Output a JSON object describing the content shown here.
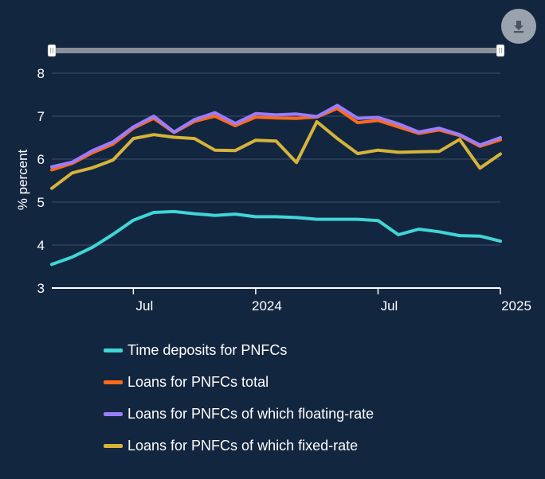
{
  "toolbar": {
    "download_icon": "download-icon"
  },
  "colors": {
    "background": "#132640",
    "grid": "#3d5068",
    "axis": "#ffffff",
    "slider_track": "#8a9099",
    "slider_handle": "#ffffff"
  },
  "chart_data": {
    "type": "line",
    "ylabel": "% percent",
    "ylim": [
      3,
      8
    ],
    "yticks": [
      3,
      4,
      5,
      6,
      7,
      8
    ],
    "xlim": [
      "2023-03",
      "2025-01"
    ],
    "xticks": [
      {
        "date": "2023-07",
        "label": "Jul"
      },
      {
        "date": "2024-01",
        "label": "2024"
      },
      {
        "date": "2024-07",
        "label": "Jul"
      },
      {
        "date": "2025-01",
        "label": "2025"
      }
    ],
    "x": [
      "2023-03",
      "2023-04",
      "2023-05",
      "2023-06",
      "2023-07",
      "2023-08",
      "2023-09",
      "2023-10",
      "2023-11",
      "2023-12",
      "2024-01",
      "2024-02",
      "2024-03",
      "2024-04",
      "2024-05",
      "2024-06",
      "2024-07",
      "2024-08",
      "2024-09",
      "2024-10",
      "2024-11",
      "2024-12",
      "2025-01"
    ],
    "grid": true,
    "legend_position": "bottom",
    "series": [
      {
        "name": "Time deposits for PNFCs",
        "color": "#3fd6d6",
        "values": [
          3.55,
          3.72,
          3.95,
          4.25,
          4.58,
          4.76,
          4.78,
          4.73,
          4.69,
          4.72,
          4.66,
          4.66,
          4.64,
          4.6,
          4.6,
          4.6,
          4.57,
          4.24,
          4.37,
          4.31,
          4.22,
          4.21,
          4.09
        ]
      },
      {
        "name": "Loans for PNFCs total",
        "color": "#ff6a1c",
        "values": [
          5.75,
          5.9,
          6.15,
          6.35,
          6.72,
          6.95,
          6.62,
          6.88,
          7.0,
          6.78,
          6.98,
          6.96,
          6.95,
          6.98,
          7.18,
          6.85,
          6.9,
          6.75,
          6.6,
          6.68,
          6.55,
          6.3,
          6.45
        ]
      },
      {
        "name": "Loans for PNFCs of which floating-rate",
        "color": "#9b7cff",
        "values": [
          5.82,
          5.93,
          6.2,
          6.4,
          6.75,
          7.0,
          6.63,
          6.92,
          7.08,
          6.83,
          7.06,
          7.03,
          7.05,
          6.99,
          7.25,
          6.95,
          6.97,
          6.82,
          6.63,
          6.72,
          6.57,
          6.33,
          6.5
        ]
      },
      {
        "name": "Loans for PNFCs of which fixed-rate",
        "color": "#d6b43a",
        "values": [
          5.32,
          5.68,
          5.8,
          5.98,
          6.48,
          6.57,
          6.51,
          6.48,
          6.21,
          6.2,
          6.44,
          6.42,
          5.92,
          6.87,
          6.48,
          6.13,
          6.21,
          6.16,
          6.17,
          6.18,
          6.46,
          5.79,
          6.12
        ]
      }
    ]
  }
}
